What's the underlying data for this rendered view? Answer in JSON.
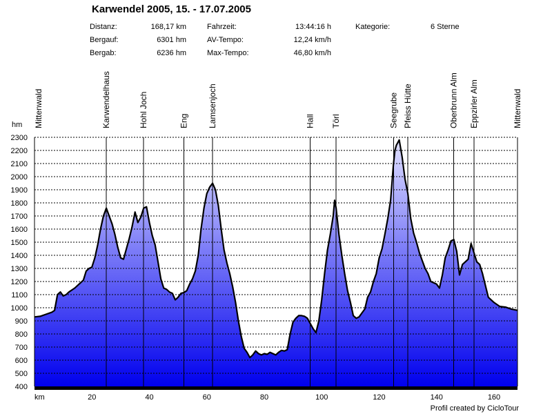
{
  "title": "Karwendel 2005, 15. - 17.07.2005",
  "stats": {
    "distanz_label": "Distanz:",
    "distanz_value": "168,17 km",
    "bergauf_label": "Bergauf:",
    "bergauf_value": "6301 hm",
    "bergab_label": "Bergab:",
    "bergab_value": "6236 hm",
    "fahrzeit_label": "Fahrzeit:",
    "fahrzeit_value": "13:44:16 h",
    "avtempo_label": "AV-Tempo:",
    "avtempo_value": "12,24 km/h",
    "maxtempo_label": "Max-Tempo:",
    "maxtempo_value": "46,80 km/h",
    "kategorie_label": "Kategorie:",
    "kategorie_value": "6 Sterne"
  },
  "footer": "Profil created by CicloTour",
  "chart_data": {
    "type": "area",
    "xlabel": "km",
    "ylabel": "hm",
    "xlim": [
      0,
      168.17
    ],
    "ylim": [
      400,
      2300
    ],
    "x_ticks": [
      20,
      40,
      60,
      80,
      100,
      120,
      140,
      160
    ],
    "y_ticks": [
      400,
      500,
      600,
      700,
      800,
      900,
      1000,
      1100,
      1200,
      1300,
      1400,
      1500,
      1600,
      1700,
      1800,
      1900,
      2000,
      2100,
      2200,
      2300
    ],
    "colors": {
      "fill_top": "#e0e0ff",
      "fill_bottom": "#0000ee",
      "line": "#000000",
      "grid": "#000000"
    },
    "waypoints": [
      {
        "km": 0,
        "name": "Mittenwald"
      },
      {
        "km": 25,
        "name": "Karwendelhaus"
      },
      {
        "km": 38,
        "name": "Hohl Joch"
      },
      {
        "km": 52,
        "name": "Eng"
      },
      {
        "km": 62,
        "name": "Lamsenjoch"
      },
      {
        "km": 96,
        "name": "Hall"
      },
      {
        "km": 105,
        "name": "Törl"
      },
      {
        "km": 125,
        "name": "Seegrube"
      },
      {
        "km": 130,
        "name": "Pfeiss Hütte"
      },
      {
        "km": 146,
        "name": "Oberbrunn Alm"
      },
      {
        "km": 153,
        "name": "Eppzirler Alm"
      },
      {
        "km": 168.17,
        "name": "Mittenwald"
      }
    ],
    "profile": [
      [
        0,
        930
      ],
      [
        2,
        935
      ],
      [
        4,
        950
      ],
      [
        6,
        965
      ],
      [
        7,
        980
      ],
      [
        8,
        1100
      ],
      [
        9,
        1120
      ],
      [
        10,
        1090
      ],
      [
        11,
        1100
      ],
      [
        12,
        1120
      ],
      [
        14,
        1150
      ],
      [
        16,
        1190
      ],
      [
        17,
        1210
      ],
      [
        18,
        1280
      ],
      [
        19,
        1300
      ],
      [
        20,
        1310
      ],
      [
        21,
        1380
      ],
      [
        22,
        1480
      ],
      [
        23,
        1600
      ],
      [
        24,
        1700
      ],
      [
        25,
        1760
      ],
      [
        26,
        1700
      ],
      [
        27,
        1640
      ],
      [
        28,
        1560
      ],
      [
        29,
        1460
      ],
      [
        30,
        1380
      ],
      [
        31,
        1370
      ],
      [
        32,
        1450
      ],
      [
        33,
        1530
      ],
      [
        34,
        1620
      ],
      [
        35,
        1730
      ],
      [
        36,
        1650
      ],
      [
        37,
        1690
      ],
      [
        38,
        1760
      ],
      [
        39,
        1770
      ],
      [
        40,
        1650
      ],
      [
        41,
        1550
      ],
      [
        42,
        1480
      ],
      [
        43,
        1350
      ],
      [
        44,
        1220
      ],
      [
        45,
        1150
      ],
      [
        46,
        1140
      ],
      [
        47,
        1120
      ],
      [
        48,
        1110
      ],
      [
        49,
        1060
      ],
      [
        50,
        1080
      ],
      [
        51,
        1110
      ],
      [
        52,
        1115
      ],
      [
        53,
        1130
      ],
      [
        54,
        1180
      ],
      [
        55,
        1220
      ],
      [
        56,
        1280
      ],
      [
        57,
        1400
      ],
      [
        58,
        1600
      ],
      [
        59,
        1760
      ],
      [
        60,
        1870
      ],
      [
        61,
        1920
      ],
      [
        62,
        1950
      ],
      [
        63,
        1900
      ],
      [
        64,
        1780
      ],
      [
        65,
        1600
      ],
      [
        66,
        1440
      ],
      [
        67,
        1340
      ],
      [
        68,
        1260
      ],
      [
        69,
        1160
      ],
      [
        70,
        1040
      ],
      [
        71,
        900
      ],
      [
        72,
        780
      ],
      [
        73,
        690
      ],
      [
        74,
        660
      ],
      [
        75,
        620
      ],
      [
        76,
        640
      ],
      [
        77,
        670
      ],
      [
        78,
        650
      ],
      [
        79,
        640
      ],
      [
        80,
        650
      ],
      [
        81,
        645
      ],
      [
        82,
        660
      ],
      [
        83,
        650
      ],
      [
        84,
        640
      ],
      [
        85,
        660
      ],
      [
        86,
        675
      ],
      [
        87,
        670
      ],
      [
        88,
        680
      ],
      [
        89,
        800
      ],
      [
        90,
        890
      ],
      [
        91,
        920
      ],
      [
        92,
        940
      ],
      [
        93,
        940
      ],
      [
        94,
        935
      ],
      [
        95,
        920
      ],
      [
        96,
        880
      ],
      [
        97,
        840
      ],
      [
        98,
        810
      ],
      [
        99,
        900
      ],
      [
        100,
        1060
      ],
      [
        101,
        1260
      ],
      [
        102,
        1440
      ],
      [
        103,
        1560
      ],
      [
        104,
        1700
      ],
      [
        104.5,
        1820
      ],
      [
        105,
        1760
      ],
      [
        106,
        1560
      ],
      [
        107,
        1400
      ],
      [
        108,
        1260
      ],
      [
        109,
        1130
      ],
      [
        110,
        1040
      ],
      [
        111,
        940
      ],
      [
        112,
        920
      ],
      [
        113,
        930
      ],
      [
        114,
        960
      ],
      [
        115,
        990
      ],
      [
        116,
        1080
      ],
      [
        117,
        1120
      ],
      [
        118,
        1200
      ],
      [
        119,
        1260
      ],
      [
        120,
        1380
      ],
      [
        121,
        1450
      ],
      [
        122,
        1560
      ],
      [
        123,
        1680
      ],
      [
        124,
        1820
      ],
      [
        125,
        2100
      ],
      [
        125.5,
        2200
      ],
      [
        126,
        2240
      ],
      [
        127,
        2280
      ],
      [
        128,
        2150
      ],
      [
        129,
        1980
      ],
      [
        130,
        1870
      ],
      [
        131,
        1680
      ],
      [
        132,
        1570
      ],
      [
        133,
        1500
      ],
      [
        134,
        1420
      ],
      [
        135,
        1360
      ],
      [
        136,
        1300
      ],
      [
        137,
        1260
      ],
      [
        138,
        1200
      ],
      [
        139,
        1190
      ],
      [
        140,
        1180
      ],
      [
        141,
        1150
      ],
      [
        142,
        1250
      ],
      [
        143,
        1380
      ],
      [
        144,
        1440
      ],
      [
        145,
        1510
      ],
      [
        146,
        1520
      ],
      [
        147,
        1430
      ],
      [
        148,
        1250
      ],
      [
        149,
        1330
      ],
      [
        150,
        1350
      ],
      [
        151,
        1370
      ],
      [
        152,
        1490
      ],
      [
        153,
        1420
      ],
      [
        154,
        1350
      ],
      [
        155,
        1330
      ],
      [
        156,
        1260
      ],
      [
        157,
        1170
      ],
      [
        158,
        1080
      ],
      [
        160,
        1040
      ],
      [
        162,
        1010
      ],
      [
        164,
        1005
      ],
      [
        166,
        990
      ],
      [
        168.17,
        980
      ]
    ]
  }
}
